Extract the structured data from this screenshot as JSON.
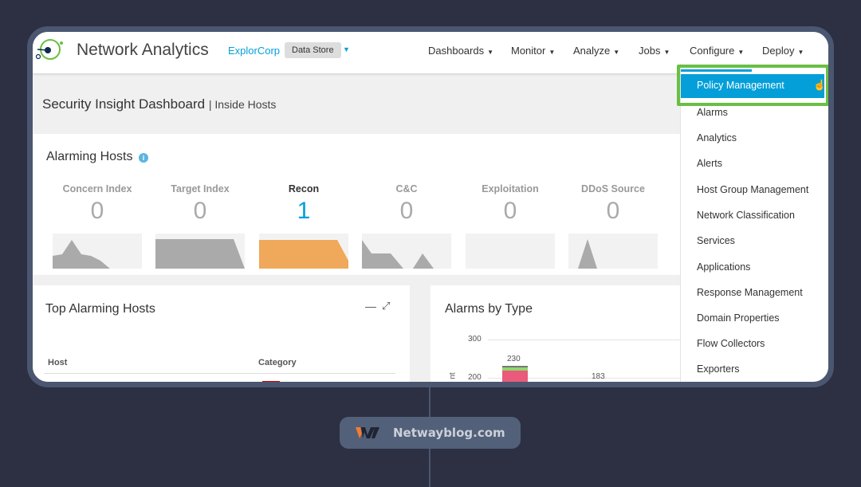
{
  "header": {
    "app_title": "Network Analytics",
    "tenant": "ExplorCorp",
    "data_store": "Data Store",
    "nav": [
      "Dashboards",
      "Monitor",
      "Analyze",
      "Jobs",
      "Configure",
      "Deploy"
    ]
  },
  "page": {
    "title": "Security Insight Dashboard",
    "subtitle": "| Inside Hosts"
  },
  "alarming_hosts": {
    "title": "Alarming Hosts",
    "metrics": [
      {
        "label": "Concern Index",
        "value": "0"
      },
      {
        "label": "Target Index",
        "value": "0"
      },
      {
        "label": "Recon",
        "value": "1",
        "active": true
      },
      {
        "label": "C&C",
        "value": "0"
      },
      {
        "label": "Exploitation",
        "value": "0"
      },
      {
        "label": "DDoS Source",
        "value": "0"
      }
    ]
  },
  "top_alarming_hosts": {
    "title": "Top Alarming Hosts",
    "columns": [
      "Host",
      "Category"
    ]
  },
  "alarms_by_type": {
    "title": "Alarms by Type",
    "y_ticks": [
      "300",
      "200"
    ],
    "y_label": "nt",
    "bar_labels": [
      "230",
      "183"
    ]
  },
  "configure_menu": {
    "items": [
      "Policy Management",
      "Alarms",
      "Analytics",
      "Alerts",
      "Host Group Management",
      "Network Classification",
      "Services",
      "Applications",
      "Response Management",
      "Domain Properties",
      "Flow Collectors",
      "Exporters"
    ],
    "selected": "Policy Management"
  },
  "watermark": {
    "text": "Netwayblog.com"
  },
  "colors": {
    "accent": "#049fd9",
    "highlight_outline": "#6abf43",
    "recon": "#f0a85a",
    "frame": "#4b5670"
  }
}
